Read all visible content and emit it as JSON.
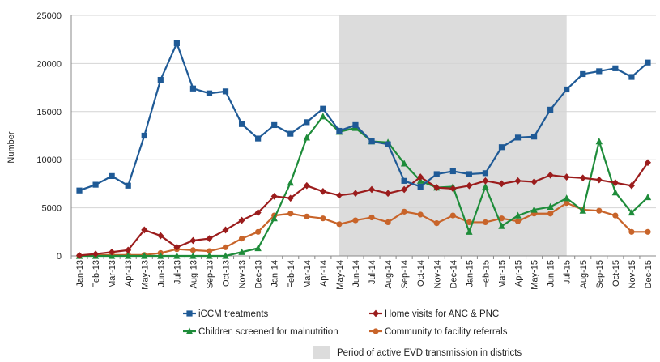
{
  "chart_data": {
    "type": "line",
    "ylabel": "Number",
    "ylim": [
      0,
      25000
    ],
    "yticks": [
      "0",
      "5000",
      "10000",
      "15000",
      "20000",
      "25000"
    ],
    "grid": "horizontal",
    "legend_position": "bottom",
    "categories": [
      "Jan-13",
      "Feb-13",
      "Mar-13",
      "Apr-13",
      "May-13",
      "Jun-13",
      "Jul-13",
      "Aug-13",
      "Sep-13",
      "Oct-13",
      "Nov-13",
      "Dec-13",
      "Jan-14",
      "Feb-14",
      "Mar-14",
      "Apr-14",
      "May-14",
      "Jun-14",
      "Jul-14",
      "Aug-14",
      "Sep-14",
      "Oct-14",
      "Nov-14",
      "Dec-14",
      "Jan-15",
      "Feb-15",
      "Mar-15",
      "Apr-15",
      "May-15",
      "Jun-15",
      "Jul-15",
      "Aug-15",
      "Sep-15",
      "Oct-15",
      "Nov-15",
      "Dec-15"
    ],
    "shaded_period": {
      "start": "May-14",
      "end": "Jul-15",
      "label": "Period of active EVD transmission in districts",
      "color": "#dcdcdc"
    },
    "series": [
      {
        "name": "iCCM treatments",
        "color": "#1f5a96",
        "marker": "square",
        "values": [
          6800,
          7400,
          8300,
          7300,
          12500,
          18300,
          22100,
          17400,
          16900,
          17100,
          13700,
          12200,
          13600,
          12700,
          13900,
          15300,
          13000,
          13600,
          11900,
          11600,
          7800,
          7200,
          8500,
          8800,
          8500,
          8600,
          11300,
          12300,
          12400,
          15200,
          17300,
          18900,
          19200,
          19500,
          18600,
          20100
        ]
      },
      {
        "name": "Home visits for ANC & PNC",
        "color": "#9b1c1c",
        "marker": "diamond",
        "values": [
          50,
          200,
          400,
          600,
          2700,
          2100,
          900,
          1600,
          1800,
          2700,
          3700,
          4500,
          6200,
          6000,
          7300,
          6700,
          6300,
          6500,
          6900,
          6500,
          6900,
          8200,
          7100,
          7000,
          7300,
          7800,
          7500,
          7800,
          7700,
          8400,
          8200,
          8100,
          7900,
          7600,
          7300,
          9700
        ]
      },
      {
        "name": "Children screened for malnutrition",
        "color": "#1e8c3a",
        "marker": "triangle",
        "values": [
          0,
          0,
          0,
          0,
          0,
          0,
          0,
          0,
          0,
          0,
          400,
          800,
          3900,
          7600,
          12300,
          14500,
          12900,
          13300,
          11900,
          11800,
          9600,
          7800,
          7100,
          7200,
          2500,
          7200,
          3100,
          4200,
          4800,
          5100,
          6000,
          4700,
          11900,
          6600,
          4500,
          6100
        ]
      },
      {
        "name": "Community to facility referrals",
        "color": "#c8642a",
        "marker": "circle",
        "values": [
          0,
          100,
          100,
          100,
          100,
          300,
          700,
          600,
          500,
          900,
          1800,
          2500,
          4200,
          4400,
          4100,
          3900,
          3300,
          3700,
          4000,
          3500,
          4600,
          4300,
          3400,
          4200,
          3500,
          3500,
          3900,
          3600,
          4400,
          4400,
          5500,
          4800,
          4700,
          4200,
          2500,
          2500
        ]
      }
    ]
  }
}
